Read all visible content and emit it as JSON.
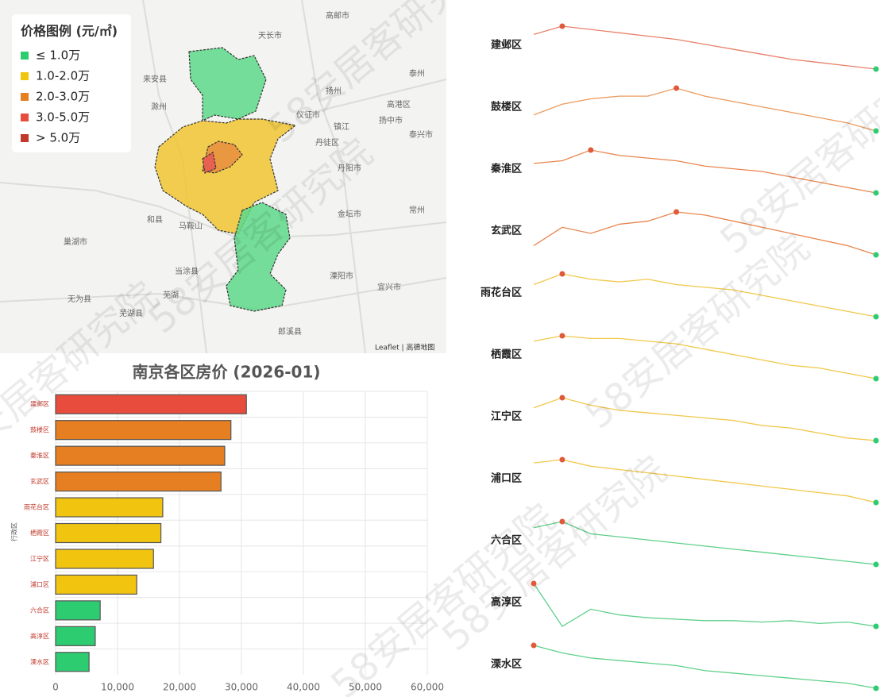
{
  "watermark": "58安居客研究院",
  "map": {
    "legend_title": "价格图例 (元/㎡)",
    "legend": [
      {
        "label": "≤ 1.0万",
        "color": "#2ecc71"
      },
      {
        "label": "1.0-2.0万",
        "color": "#f1c40f"
      },
      {
        "label": "2.0-3.0万",
        "color": "#e67e22"
      },
      {
        "label": "3.0-5.0万",
        "color": "#e74c3c"
      },
      {
        "label": "> 5.0万",
        "color": "#c0392b"
      }
    ],
    "places": [
      "天长市",
      "高邮市",
      "来安县",
      "滁州",
      "扬州",
      "泰州",
      "仪征市",
      "高港区",
      "扬中市",
      "镇江",
      "泰兴市",
      "丹徒区",
      "丹阳市",
      "金坛市",
      "常州",
      "和县",
      "马鞍山",
      "巢湖市",
      "芜湖",
      "当涂县",
      "溧阳市",
      "宜兴市",
      "无为县",
      "芜湖县",
      "郎溪县"
    ],
    "attribution": "Leaflet | 高德地图"
  },
  "chart_data": [
    {
      "type": "bar",
      "title": "南京各区房价 (2026-01)",
      "y_label": "行政区",
      "categories": [
        "建邺区",
        "鼓楼区",
        "秦淮区",
        "玄武区",
        "雨花台区",
        "栖霞区",
        "江宁区",
        "浦口区",
        "六合区",
        "高淳区",
        "溧水区"
      ],
      "values": [
        30800,
        28300,
        27300,
        26700,
        17300,
        17000,
        15800,
        13100,
        7200,
        6400,
        5400
      ],
      "colors": [
        "#e74c3c",
        "#e67e22",
        "#e67e22",
        "#e67e22",
        "#f1c40f",
        "#f1c40f",
        "#f1c40f",
        "#f1c40f",
        "#2ecc71",
        "#2ecc71",
        "#2ecc71"
      ],
      "xlim": [
        0,
        60000
      ],
      "xticks": [
        0,
        {
          "value": 10000,
          "label": "10,000"
        },
        {
          "value": 20000,
          "label": "20,000"
        },
        {
          "value": 30000,
          "label": "30,000"
        },
        {
          "value": 40000,
          "label": "40,000"
        },
        {
          "value": 50000,
          "label": "50,000"
        },
        {
          "value": 60000,
          "label": "60,000"
        }
      ],
      "grid": true
    },
    {
      "type": "line",
      "series": [
        {
          "name": "建邺区",
          "color": "#e8806a",
          "values": [
            95,
            100,
            98,
            96,
            94,
            92,
            89,
            86,
            83,
            80,
            78,
            76,
            74
          ]
        },
        {
          "name": "鼓楼区",
          "color": "#ec9a5c",
          "values": [
            78,
            82,
            84,
            85,
            85,
            88,
            85,
            83,
            81,
            79,
            77,
            75,
            72
          ]
        },
        {
          "name": "秦淮区",
          "color": "#e8864e",
          "values": [
            85,
            86,
            90,
            88,
            87,
            86,
            84,
            83,
            82,
            80,
            78,
            76,
            74
          ]
        },
        {
          "name": "玄武区",
          "color": "#e8864e",
          "values": [
            78,
            84,
            82,
            85,
            86,
            89,
            88,
            86,
            84,
            82,
            80,
            78,
            75
          ]
        },
        {
          "name": "雨花台区",
          "color": "#f1c84a",
          "values": [
            88,
            92,
            90,
            89,
            90,
            88,
            87,
            86,
            84,
            82,
            80,
            78,
            76
          ]
        },
        {
          "name": "栖霞区",
          "color": "#f1c84a",
          "values": [
            90,
            92,
            91,
            91,
            90,
            89,
            87,
            85,
            83,
            81,
            80,
            78,
            76
          ]
        },
        {
          "name": "江宁区",
          "color": "#f1c84a",
          "values": [
            88,
            92,
            89,
            87,
            86,
            85,
            84,
            83,
            81,
            80,
            78,
            76,
            75
          ]
        },
        {
          "name": "浦口区",
          "color": "#f1c84a",
          "values": [
            90,
            91,
            89,
            88,
            87,
            86,
            85,
            84,
            83,
            82,
            81,
            80,
            78
          ]
        },
        {
          "name": "六合区",
          "color": "#5fd08a",
          "values": [
            95,
            97,
            93,
            92,
            91,
            90,
            89,
            88,
            87,
            86,
            85,
            84,
            83
          ]
        },
        {
          "name": "高淳区",
          "color": "#5fd08a",
          "values": [
            100,
            70,
            82,
            78,
            76,
            75,
            74,
            74,
            73,
            74,
            72,
            73,
            70
          ]
        },
        {
          "name": "溧水区",
          "color": "#5fd08a",
          "values": [
            100,
            97,
            95,
            94,
            93,
            92,
            90,
            89,
            88,
            87,
            86,
            85,
            83
          ]
        }
      ]
    }
  ]
}
